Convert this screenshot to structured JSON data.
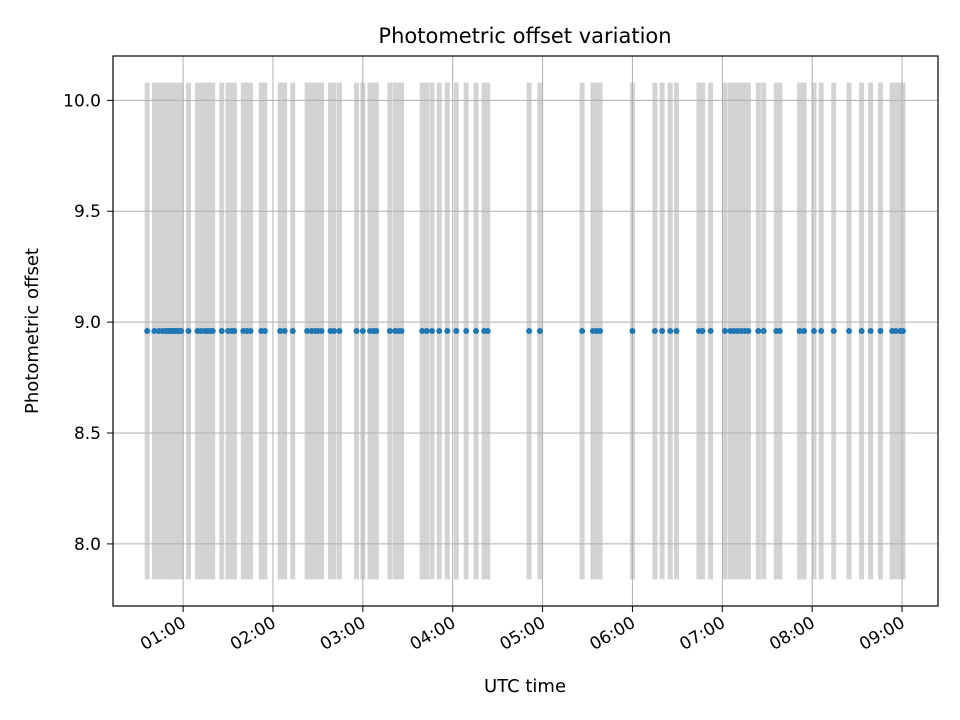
{
  "chart_data": {
    "type": "scatter",
    "title": "Photometric offset variation",
    "xlabel": "UTC time",
    "ylabel": "Photometric offset",
    "x_unit": "hours (UTC)",
    "xlim": [
      0.22,
      9.4
    ],
    "ylim": [
      7.72,
      10.2
    ],
    "x_ticks": [
      1,
      2,
      3,
      4,
      5,
      6,
      7,
      8,
      9
    ],
    "x_tick_labels": [
      "01:00",
      "02:00",
      "03:00",
      "04:00",
      "05:00",
      "06:00",
      "07:00",
      "08:00",
      "09:00"
    ],
    "y_ticks": [
      8.0,
      8.5,
      9.0,
      9.5,
      10.0
    ],
    "y_tick_labels": [
      "8.0",
      "8.5",
      "9.0",
      "9.5",
      "10.0"
    ],
    "grid": true,
    "marker_color": "#1f77b4",
    "band_color": "#d3d3d3",
    "band_range": [
      7.84,
      10.08
    ],
    "series": [
      {
        "x": [
          0.6,
          0.68,
          0.73,
          0.77,
          0.8,
          0.82,
          0.84,
          0.86,
          0.88,
          0.9,
          0.92,
          0.94,
          0.96,
          0.98,
          1.06,
          1.16,
          1.2,
          1.24,
          1.27,
          1.3,
          1.33,
          1.43,
          1.5,
          1.54,
          1.57,
          1.67,
          1.71,
          1.75,
          1.87,
          1.91,
          2.08,
          2.13,
          2.22,
          2.38,
          2.43,
          2.47,
          2.5,
          2.54,
          2.64,
          2.68,
          2.74,
          2.93,
          3.0,
          3.08,
          3.12,
          3.15,
          3.3,
          3.36,
          3.4,
          3.43,
          3.66,
          3.71,
          3.77,
          3.85,
          3.94,
          4.04,
          4.15,
          4.26,
          4.35,
          4.39,
          4.85,
          4.97,
          5.44,
          5.56,
          5.6,
          5.64,
          6.0,
          6.25,
          6.33,
          6.42,
          6.49,
          6.74,
          6.78,
          6.87,
          7.03,
          7.09,
          7.13,
          7.17,
          7.21,
          7.25,
          7.29,
          7.4,
          7.46,
          7.6,
          7.64,
          7.86,
          7.91,
          8.02,
          8.1,
          8.24,
          8.41,
          8.55,
          8.65,
          8.76,
          8.89,
          8.93,
          8.98,
          9.01
        ],
        "y": [
          8.96,
          8.96,
          8.96,
          8.96,
          8.96,
          8.96,
          8.96,
          8.96,
          8.96,
          8.96,
          8.96,
          8.96,
          8.96,
          8.96,
          8.96,
          8.96,
          8.96,
          8.96,
          8.96,
          8.96,
          8.96,
          8.96,
          8.96,
          8.96,
          8.96,
          8.96,
          8.96,
          8.96,
          8.96,
          8.96,
          8.96,
          8.96,
          8.96,
          8.96,
          8.96,
          8.96,
          8.96,
          8.96,
          8.96,
          8.96,
          8.96,
          8.96,
          8.96,
          8.96,
          8.96,
          8.96,
          8.96,
          8.96,
          8.96,
          8.96,
          8.96,
          8.96,
          8.96,
          8.96,
          8.96,
          8.96,
          8.96,
          8.96,
          8.96,
          8.96,
          8.96,
          8.96,
          8.96,
          8.96,
          8.96,
          8.96,
          8.96,
          8.96,
          8.96,
          8.96,
          8.96,
          8.96,
          8.96,
          8.96,
          8.96,
          8.96,
          8.96,
          8.96,
          8.96,
          8.96,
          8.96,
          8.96,
          8.96,
          8.96,
          8.96,
          8.96,
          8.96,
          8.96,
          8.96,
          8.96,
          8.96,
          8.96,
          8.96,
          8.96,
          8.96,
          8.96,
          8.96,
          8.96
        ]
      }
    ]
  }
}
